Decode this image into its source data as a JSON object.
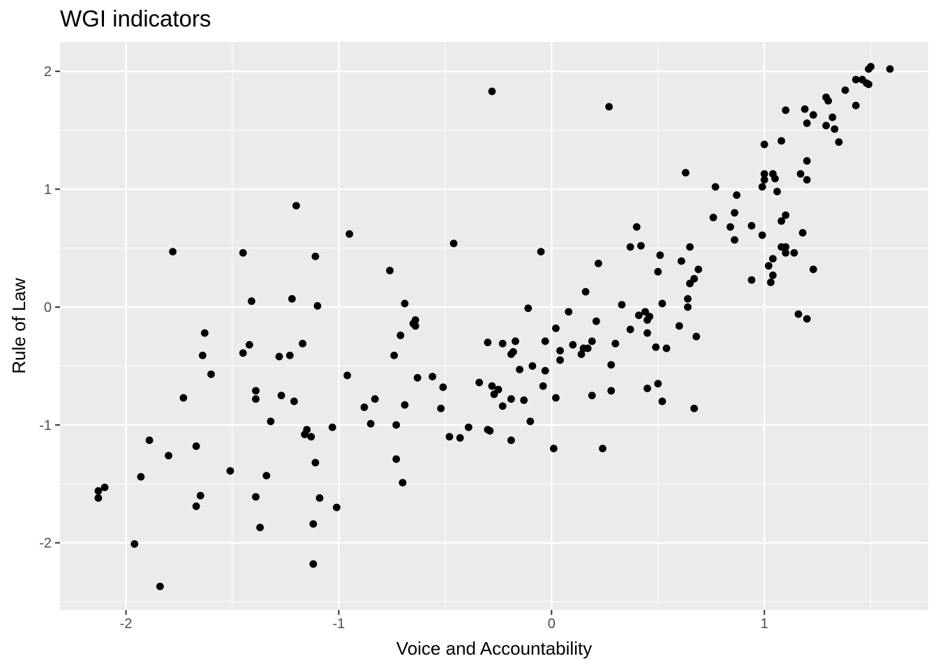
{
  "chart_data": {
    "type": "scatter",
    "title": "WGI indicators",
    "xlabel": "Voice and Accountability",
    "ylabel": "Rule of Law",
    "xlim": [
      -2.31,
      1.77
    ],
    "ylim": [
      -2.57,
      2.25
    ],
    "xticks": [
      -2,
      -1,
      0,
      1
    ],
    "yticks": [
      -2,
      -1,
      0,
      1,
      2
    ],
    "xtick_labels": [
      "-2",
      "-1",
      "0",
      "1"
    ],
    "ytick_labels": [
      "-2",
      "-1",
      "0",
      "1",
      "2"
    ],
    "grid": true,
    "panel_background": "#ebebeb",
    "grid_major_color": "#ffffff",
    "point_color": "#000000",
    "points": [
      [
        -0.28,
        1.83
      ],
      [
        0.27,
        1.7
      ],
      [
        1.59,
        2.02
      ],
      [
        1.5,
        2.04
      ],
      [
        1.49,
        2.02
      ],
      [
        1.46,
        1.93
      ],
      [
        1.48,
        1.9
      ],
      [
        1.49,
        1.89
      ],
      [
        1.43,
        1.93
      ],
      [
        1.43,
        1.71
      ],
      [
        1.38,
        1.84
      ],
      [
        1.29,
        1.78
      ],
      [
        1.3,
        1.75
      ],
      [
        1.23,
        1.63
      ],
      [
        1.19,
        1.68
      ],
      [
        1.1,
        1.67
      ],
      [
        1.2,
        1.56
      ],
      [
        1.29,
        1.54
      ],
      [
        1.32,
        1.61
      ],
      [
        1.33,
        1.51
      ],
      [
        1.35,
        1.4
      ],
      [
        1.08,
        1.41
      ],
      [
        1.0,
        1.38
      ],
      [
        1.2,
        1.24
      ],
      [
        0.63,
        1.14
      ],
      [
        1.0,
        1.13
      ],
      [
        1.04,
        1.13
      ],
      [
        1.0,
        1.08
      ],
      [
        1.05,
        1.09
      ],
      [
        1.17,
        1.13
      ],
      [
        1.2,
        1.08
      ],
      [
        0.77,
        1.02
      ],
      [
        0.99,
        1.02
      ],
      [
        1.06,
        0.98
      ],
      [
        0.87,
        0.95
      ],
      [
        0.86,
        0.8
      ],
      [
        1.1,
        0.78
      ],
      [
        0.76,
        0.76
      ],
      [
        1.08,
        0.73
      ],
      [
        0.84,
        0.68
      ],
      [
        0.94,
        0.69
      ],
      [
        0.99,
        0.61
      ],
      [
        0.86,
        0.57
      ],
      [
        1.18,
        0.63
      ],
      [
        1.08,
        0.51
      ],
      [
        1.1,
        0.51
      ],
      [
        1.1,
        0.46
      ],
      [
        1.14,
        0.46
      ],
      [
        1.04,
        0.41
      ],
      [
        1.02,
        0.35
      ],
      [
        1.23,
        0.32
      ],
      [
        1.04,
        0.27
      ],
      [
        0.94,
        0.23
      ],
      [
        1.03,
        0.21
      ],
      [
        1.16,
        -0.06
      ],
      [
        1.2,
        -0.1
      ],
      [
        0.4,
        0.68
      ],
      [
        0.37,
        0.51
      ],
      [
        0.42,
        0.52
      ],
      [
        0.65,
        0.51
      ],
      [
        0.51,
        0.44
      ],
      [
        0.61,
        0.39
      ],
      [
        0.22,
        0.37
      ],
      [
        0.69,
        0.32
      ],
      [
        0.5,
        0.3
      ],
      [
        0.67,
        0.24
      ],
      [
        0.65,
        0.2
      ],
      [
        0.16,
        0.13
      ],
      [
        0.64,
        0.07
      ],
      [
        0.33,
        0.02
      ],
      [
        0.52,
        0.03
      ],
      [
        0.64,
        0.0
      ],
      [
        0.08,
        -0.04
      ],
      [
        0.44,
        -0.04
      ],
      [
        0.41,
        -0.07
      ],
      [
        0.46,
        -0.08
      ],
      [
        0.45,
        -0.11
      ],
      [
        0.21,
        -0.12
      ],
      [
        0.6,
        -0.16
      ],
      [
        0.02,
        -0.18
      ],
      [
        0.37,
        -0.19
      ],
      [
        0.45,
        -0.22
      ],
      [
        0.68,
        -0.25
      ],
      [
        -0.03,
        -0.29
      ],
      [
        0.19,
        -0.29
      ],
      [
        0.1,
        -0.32
      ],
      [
        0.3,
        -0.31
      ],
      [
        0.15,
        -0.35
      ],
      [
        0.17,
        -0.35
      ],
      [
        0.49,
        -0.34
      ],
      [
        0.54,
        -0.35
      ],
      [
        0.04,
        -0.37
      ],
      [
        0.14,
        -0.4
      ],
      [
        0.04,
        -0.45
      ],
      [
        0.28,
        -0.49
      ],
      [
        -0.03,
        -0.54
      ],
      [
        -0.04,
        -0.67
      ],
      [
        0.28,
        -0.71
      ],
      [
        0.19,
        -0.75
      ],
      [
        0.02,
        -0.77
      ],
      [
        0.5,
        -0.65
      ],
      [
        0.45,
        -0.69
      ],
      [
        0.52,
        -0.8
      ],
      [
        0.67,
        -0.86
      ],
      [
        -0.05,
        0.47
      ],
      [
        -0.11,
        -0.01
      ],
      [
        -0.17,
        -0.29
      ],
      [
        -0.18,
        -0.38
      ],
      [
        -0.19,
        -0.4
      ],
      [
        -0.15,
        -0.53
      ],
      [
        -0.09,
        -0.5
      ],
      [
        -0.23,
        -0.31
      ],
      [
        -0.3,
        -0.3
      ],
      [
        -0.28,
        -0.67
      ],
      [
        -0.25,
        -0.7
      ],
      [
        -0.27,
        -0.74
      ],
      [
        -0.19,
        -0.78
      ],
      [
        -0.13,
        -0.79
      ],
      [
        -0.23,
        -0.84
      ],
      [
        -0.34,
        -0.64
      ],
      [
        -0.29,
        -1.05
      ],
      [
        -0.3,
        -1.04
      ],
      [
        -0.1,
        -0.97
      ],
      [
        -0.19,
        -1.13
      ],
      [
        0.01,
        -1.2
      ],
      [
        0.24,
        -1.2
      ],
      [
        -0.46,
        0.54
      ],
      [
        -0.64,
        -0.11
      ],
      [
        -0.65,
        -0.14
      ],
      [
        -0.64,
        -0.16
      ],
      [
        -0.69,
        0.03
      ],
      [
        -0.76,
        0.31
      ],
      [
        -0.71,
        -0.24
      ],
      [
        -0.74,
        -0.41
      ],
      [
        -0.63,
        -0.6
      ],
      [
        -0.56,
        -0.59
      ],
      [
        -0.51,
        -0.68
      ],
      [
        -0.69,
        -0.83
      ],
      [
        -0.52,
        -0.86
      ],
      [
        -0.73,
        -1.0
      ],
      [
        -0.48,
        -1.1
      ],
      [
        -0.43,
        -1.11
      ],
      [
        -0.39,
        -1.02
      ],
      [
        -0.73,
        -1.29
      ],
      [
        -0.7,
        -1.49
      ],
      [
        -0.95,
        0.62
      ],
      [
        -0.96,
        -0.58
      ],
      [
        -0.83,
        -0.78
      ],
      [
        -0.88,
        -0.85
      ],
      [
        -0.85,
        -0.99
      ],
      [
        -1.03,
        -1.02
      ],
      [
        -1.01,
        -1.7
      ],
      [
        -1.2,
        0.86
      ],
      [
        -1.11,
        0.43
      ],
      [
        -1.1,
        0.01
      ],
      [
        -1.22,
        0.07
      ],
      [
        -1.17,
        -0.31
      ],
      [
        -1.23,
        -0.41
      ],
      [
        -1.28,
        -0.42
      ],
      [
        -1.27,
        -0.75
      ],
      [
        -1.21,
        -0.8
      ],
      [
        -1.15,
        -1.04
      ],
      [
        -1.16,
        -1.08
      ],
      [
        -1.13,
        -1.1
      ],
      [
        -1.11,
        -1.32
      ],
      [
        -1.09,
        -1.62
      ],
      [
        -1.12,
        -1.84
      ],
      [
        -1.12,
        -2.18
      ],
      [
        -1.45,
        0.46
      ],
      [
        -1.41,
        0.05
      ],
      [
        -1.42,
        -0.32
      ],
      [
        -1.45,
        -0.39
      ],
      [
        -1.39,
        -0.71
      ],
      [
        -1.39,
        -0.78
      ],
      [
        -1.32,
        -0.97
      ],
      [
        -1.34,
        -1.43
      ],
      [
        -1.51,
        -1.39
      ],
      [
        -1.39,
        -1.61
      ],
      [
        -1.37,
        -1.87
      ],
      [
        -1.78,
        0.47
      ],
      [
        -1.63,
        -0.22
      ],
      [
        -1.64,
        -0.41
      ],
      [
        -1.6,
        -0.57
      ],
      [
        -1.73,
        -0.77
      ],
      [
        -1.67,
        -1.18
      ],
      [
        -1.65,
        -1.6
      ],
      [
        -1.67,
        -1.69
      ],
      [
        -1.89,
        -1.13
      ],
      [
        -1.93,
        -1.44
      ],
      [
        -1.8,
        -1.26
      ],
      [
        -1.96,
        -2.01
      ],
      [
        -1.84,
        -2.37
      ],
      [
        -2.1,
        -1.53
      ],
      [
        -2.13,
        -1.56
      ],
      [
        -2.13,
        -1.62
      ]
    ]
  }
}
